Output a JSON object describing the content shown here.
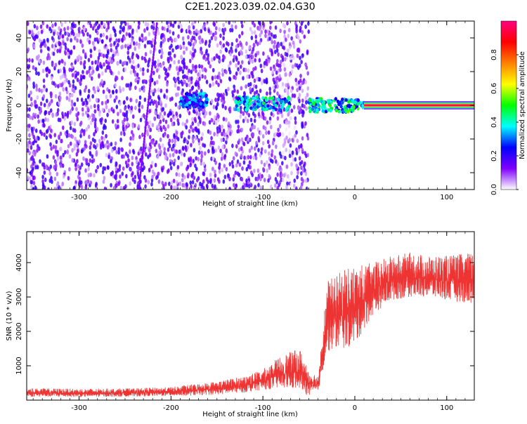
{
  "figure_title": "C2E1.2023.039.02.04.G30",
  "chart_data": [
    {
      "type": "heatmap",
      "title": "C2E1.2023.039.02.04.G30",
      "xlabel": "Height of straight line (km)",
      "ylabel": "Frequency (Hz)",
      "xlim": [
        -357,
        130
      ],
      "ylim": [
        -50,
        50
      ],
      "x_ticks": [
        -300,
        -200,
        -100,
        0,
        100
      ],
      "y_ticks": [
        -40,
        -20,
        0,
        20,
        40
      ],
      "colorbar": {
        "label": "Normalized spectral amplitude",
        "range": [
          0,
          1
        ],
        "ticks": [
          0.0,
          0.2,
          0.4,
          0.6,
          0.8
        ],
        "colors": [
          "#ffffff",
          "#7f00ff",
          "#0000ff",
          "#00ffff",
          "#00ff00",
          "#ffff00",
          "#ff8000",
          "#ff0000",
          "#ff0080"
        ]
      },
      "regions": [
        {
          "x_range": [
            -357,
            -50
          ],
          "description": "broadband noise, amplitude ~0.05-0.2"
        },
        {
          "x_range": [
            -190,
            -160
          ],
          "freq_hz": 3,
          "amplitude": 0.35
        },
        {
          "x_range": [
            -130,
            -70
          ],
          "freq_hz": 1,
          "amplitude": 0.45
        },
        {
          "x_range": [
            -50,
            10
          ],
          "freq_hz": 0,
          "amplitude": 0.5
        },
        {
          "x_range": [
            10,
            130
          ],
          "freq_hz": 0,
          "amplitude": 1.0
        }
      ],
      "grid": false
    },
    {
      "type": "line",
      "xlabel": "Height of straight line (km)",
      "ylabel": "SNR (10 * v/v)",
      "xlim": [
        -357,
        130
      ],
      "ylim": [
        0,
        4900
      ],
      "x_ticks": [
        -300,
        -200,
        -100,
        0,
        100
      ],
      "y_ticks": [
        1000,
        2000,
        3000,
        4000
      ],
      "series": [
        {
          "color": "#ee3333",
          "x": [
            -357,
            -300,
            -250,
            -200,
            -180,
            -150,
            -120,
            -100,
            -80,
            -60,
            -50,
            -40,
            -30,
            -20,
            -10,
            0,
            20,
            40,
            60,
            80,
            100,
            130
          ],
          "y_low": [
            100,
            90,
            100,
            120,
            130,
            160,
            220,
            300,
            350,
            300,
            100,
            250,
            1400,
            1500,
            1500,
            1600,
            2500,
            2900,
            3000,
            3000,
            2900,
            2800
          ],
          "y_high": [
            350,
            330,
            340,
            380,
            450,
            550,
            700,
            900,
            1300,
            1500,
            900,
            700,
            3500,
            3600,
            3900,
            3900,
            4000,
            4200,
            4300,
            4200,
            4200,
            4300
          ]
        }
      ],
      "grid": false
    }
  ]
}
